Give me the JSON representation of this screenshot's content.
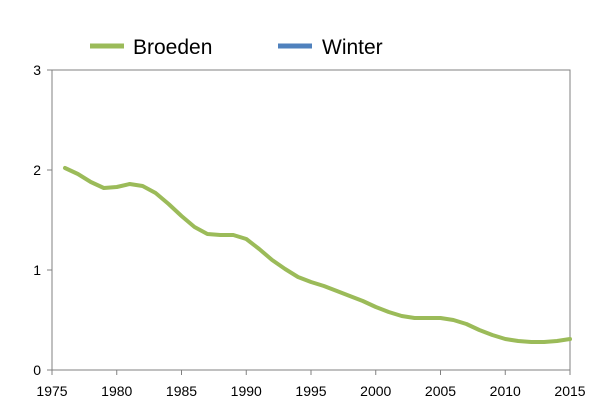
{
  "chart_data": {
    "type": "line",
    "title": "",
    "xlabel": "",
    "ylabel": "",
    "xlim": [
      1975,
      2015
    ],
    "ylim": [
      0,
      3
    ],
    "x_ticks": [
      1975,
      1980,
      1985,
      1990,
      1995,
      2000,
      2005,
      2010,
      2015
    ],
    "y_ticks": [
      0,
      1,
      2,
      3
    ],
    "x_tick_labels": [
      "1975",
      "1980",
      "1985",
      "1990",
      "1995",
      "2000",
      "2005",
      "2010",
      "2015"
    ],
    "y_tick_labels": [
      "0",
      "1",
      "2",
      "3"
    ],
    "grid": false,
    "legend_position": "top",
    "series": [
      {
        "name": "Broeden",
        "color": "#9bbb59",
        "x": [
          1976,
          1977,
          1978,
          1979,
          1980,
          1981,
          1982,
          1983,
          1984,
          1985,
          1986,
          1987,
          1988,
          1989,
          1990,
          1991,
          1992,
          1993,
          1994,
          1995,
          1996,
          1997,
          1998,
          1999,
          2000,
          2001,
          2002,
          2003,
          2004,
          2005,
          2006,
          2007,
          2008,
          2009,
          2010,
          2011,
          2012,
          2013,
          2014,
          2015
        ],
        "values": [
          2.02,
          1.96,
          1.88,
          1.82,
          1.83,
          1.86,
          1.84,
          1.77,
          1.66,
          1.54,
          1.43,
          1.36,
          1.35,
          1.35,
          1.31,
          1.21,
          1.1,
          1.01,
          0.93,
          0.88,
          0.84,
          0.79,
          0.74,
          0.69,
          0.63,
          0.58,
          0.54,
          0.52,
          0.52,
          0.52,
          0.5,
          0.46,
          0.4,
          0.35,
          0.31,
          0.29,
          0.28,
          0.28,
          0.29,
          0.31
        ]
      },
      {
        "name": "Winter",
        "color": "#4f81bd",
        "x": [],
        "values": []
      }
    ]
  }
}
